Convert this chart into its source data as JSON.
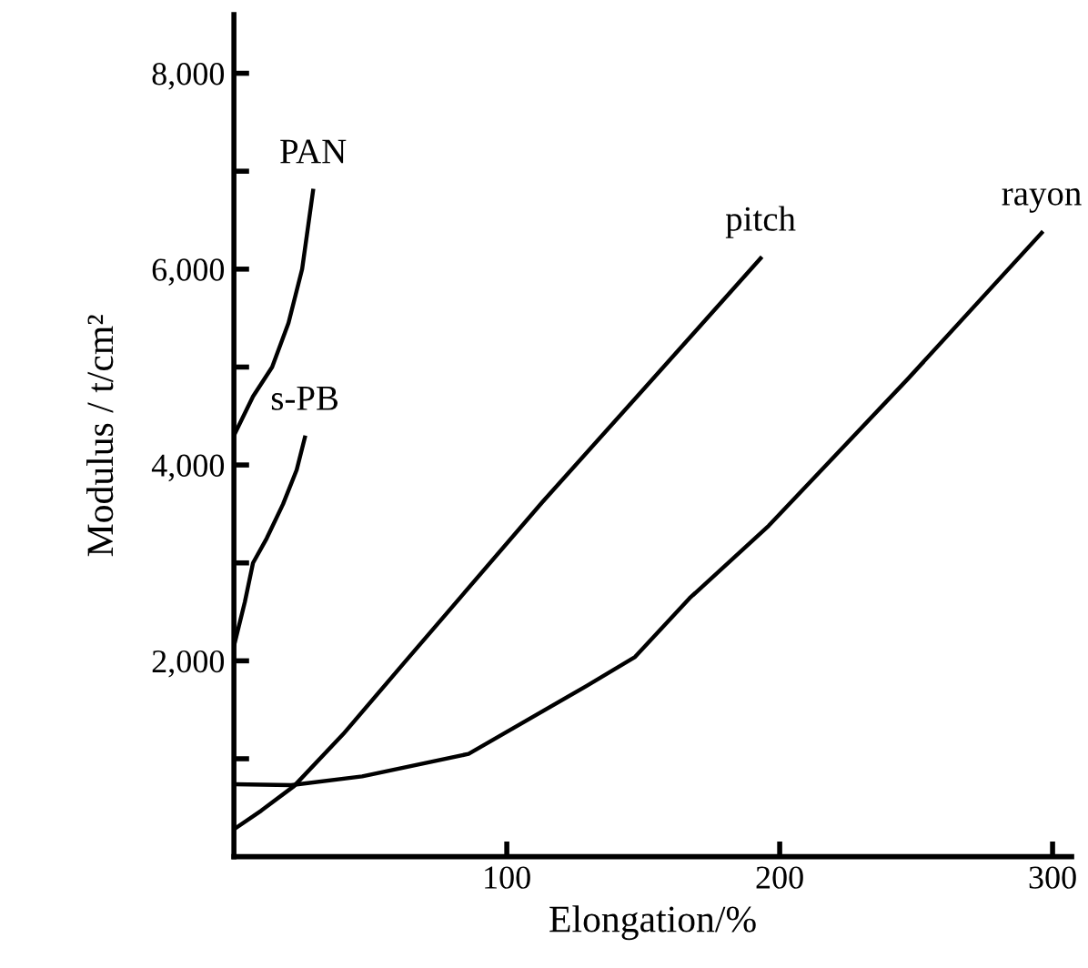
{
  "chart_data": {
    "type": "line",
    "xlabel": "Elongation/%",
    "ylabel": "Modulus / t/cm²",
    "xlim": [
      0,
      307
    ],
    "ylim": [
      0,
      8600
    ],
    "xticks": [
      100,
      200,
      300
    ],
    "yticks": [
      {
        "value": 1000,
        "label": null
      },
      {
        "value": 2000,
        "label": "2,000"
      },
      {
        "value": 3000,
        "label": null
      },
      {
        "value": 4000,
        "label": "4,000"
      },
      {
        "value": 5000,
        "label": null
      },
      {
        "value": 6000,
        "label": "6,000"
      },
      {
        "value": 7000,
        "label": null
      },
      {
        "value": 8000,
        "label": "8,000"
      }
    ],
    "grid": false,
    "legend": false,
    "marker": "none",
    "line_style": "solid",
    "series": [
      {
        "name": "PAN",
        "color": "#000000",
        "x": [
          0,
          7,
          14,
          20,
          25,
          29
        ],
        "values": [
          4300,
          4700,
          5000,
          5450,
          6000,
          6800
        ]
      },
      {
        "name": "s-PB",
        "color": "#000000",
        "x": [
          0,
          4,
          7,
          12,
          18,
          23,
          26
        ],
        "values": [
          2150,
          2600,
          3000,
          3250,
          3600,
          3950,
          4280
        ]
      },
      {
        "name": "pitch",
        "color": "#000000",
        "x": [
          0,
          10,
          22,
          40,
          63,
          113,
          150,
          193
        ],
        "values": [
          280,
          470,
          720,
          1250,
          2000,
          3620,
          4770,
          6110
        ]
      },
      {
        "name": "rayon",
        "color": "#000000",
        "x": [
          0,
          21,
          47,
          86,
          129,
          147,
          167,
          196,
          247,
          296
        ],
        "values": [
          740,
          730,
          820,
          1050,
          1740,
          2040,
          2640,
          3380,
          4880,
          6370
        ]
      }
    ]
  }
}
